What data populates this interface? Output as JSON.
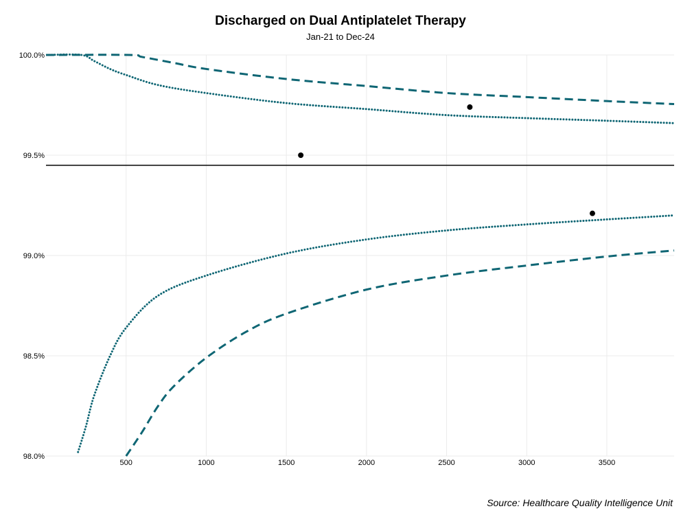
{
  "chart_data": {
    "type": "scatter",
    "title": "Discharged on Dual Antiplatelet Therapy",
    "subtitle": "Jan-21 to Dec-24",
    "caption": "Source: Healthcare Quality Intelligence Unit",
    "xlabel": "",
    "ylabel": "",
    "xlim": [
      0,
      3920
    ],
    "ylim": [
      98.0,
      100.0
    ],
    "x_ticks": [
      500,
      1000,
      1500,
      2000,
      2500,
      3000,
      3500
    ],
    "x_tick_labels": [
      "500",
      "1000",
      "1500",
      "2000",
      "2500",
      "3000",
      "3500"
    ],
    "y_ticks": [
      98.0,
      98.5,
      99.0,
      99.5,
      100.0
    ],
    "y_tick_labels": [
      "98.0%",
      "98.5%",
      "99.0%",
      "99.5%",
      "100.0%"
    ],
    "grid": true,
    "target": 99.45,
    "points": [
      {
        "x": 1590,
        "y": 99.5
      },
      {
        "x": 2645,
        "y": 99.74
      },
      {
        "x": 3410,
        "y": 99.21
      }
    ],
    "funnel_limits": [
      {
        "style": "dotted",
        "bound": "upper",
        "x": [
          0,
          220,
          300,
          400,
          500,
          700,
          1000,
          1500,
          2000,
          2500,
          3000,
          3500,
          3920
        ],
        "y": [
          100.0,
          100.0,
          99.97,
          99.93,
          99.9,
          99.85,
          99.81,
          99.76,
          99.73,
          99.7,
          99.685,
          99.672,
          99.66
        ]
      },
      {
        "style": "dotted",
        "bound": "lower",
        "x": [
          200,
          250,
          300,
          400,
          500,
          700,
          1000,
          1500,
          2000,
          2500,
          3000,
          3500,
          3920
        ],
        "y": [
          98.02,
          98.15,
          98.3,
          98.5,
          98.64,
          98.8,
          98.9,
          99.01,
          99.08,
          99.125,
          99.155,
          99.18,
          99.2
        ]
      },
      {
        "style": "dashed",
        "bound": "upper",
        "x": [
          0,
          520,
          600,
          800,
          1000,
          1500,
          2000,
          2500,
          3000,
          3500,
          3920
        ],
        "y": [
          100.0,
          100.0,
          99.99,
          99.96,
          99.93,
          99.88,
          99.845,
          99.81,
          99.79,
          99.77,
          99.755
        ]
      },
      {
        "style": "dashed",
        "bound": "lower",
        "x": [
          500,
          600,
          700,
          800,
          1000,
          1250,
          1500,
          2000,
          2500,
          3000,
          3500,
          3920
        ],
        "y": [
          98.0,
          98.12,
          98.25,
          98.35,
          98.49,
          98.62,
          98.71,
          98.83,
          98.9,
          98.95,
          98.995,
          99.025
        ]
      }
    ],
    "colors": {
      "limit": "#0f6674",
      "target": "#000000",
      "point": "#000000",
      "grid": "#ebebeb"
    }
  }
}
